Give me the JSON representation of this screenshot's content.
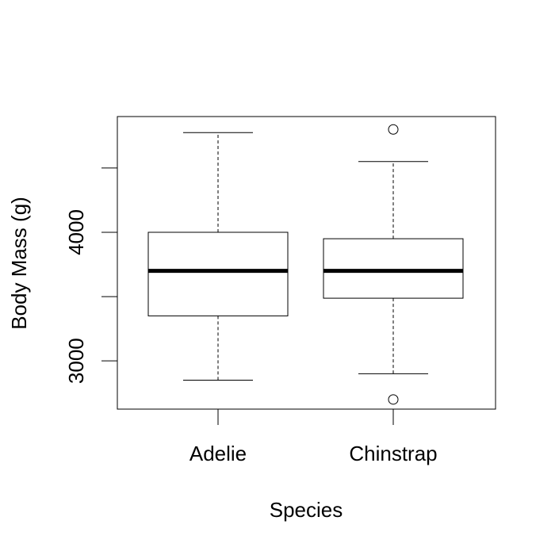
{
  "chart_data": {
    "type": "boxplot",
    "xlabel": "Species",
    "ylabel": "Body Mass (g)",
    "ylim": [
      2625,
      4900
    ],
    "y_ticks": [
      3000,
      3500,
      4000,
      4500
    ],
    "y_tick_labels": [
      "3000",
      "",
      "4000",
      ""
    ],
    "grid": false,
    "categories": [
      "Adelie",
      "Chinstrap"
    ],
    "boxes": [
      {
        "name": "Adelie",
        "whisker_low": 2850,
        "q1": 3350,
        "median": 3700,
        "q3": 4000,
        "whisker_high": 4775,
        "outliers": []
      },
      {
        "name": "Chinstrap",
        "whisker_low": 2900,
        "q1": 3487.5,
        "median": 3700,
        "q3": 3950,
        "whisker_high": 4550,
        "outliers": [
          2700,
          4800
        ]
      }
    ]
  }
}
